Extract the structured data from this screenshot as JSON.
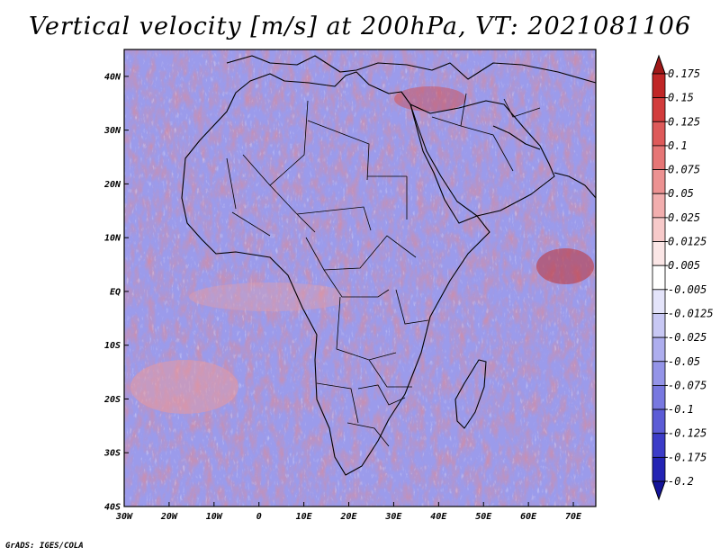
{
  "title": "Vertical velocity [m/s] at 200hPa, VT: 2021081106",
  "credit": "GrADS: IGES/COLA",
  "chart_data": {
    "type": "heatmap",
    "variable": "Vertical velocity",
    "units": "m/s",
    "level": "200hPa",
    "valid_time": "2021081106",
    "x_range": [
      -30,
      75
    ],
    "y_range": [
      -40,
      45
    ],
    "lon_ticks": [
      {
        "value": -30,
        "label": "30W"
      },
      {
        "value": -20,
        "label": "20W"
      },
      {
        "value": -10,
        "label": "10W"
      },
      {
        "value": 0,
        "label": "0"
      },
      {
        "value": 10,
        "label": "10E"
      },
      {
        "value": 20,
        "label": "20E"
      },
      {
        "value": 30,
        "label": "30E"
      },
      {
        "value": 40,
        "label": "40E"
      },
      {
        "value": 50,
        "label": "50E"
      },
      {
        "value": 60,
        "label": "60E"
      },
      {
        "value": 70,
        "label": "70E"
      }
    ],
    "lat_ticks": [
      {
        "value": 40,
        "label": "40N"
      },
      {
        "value": 30,
        "label": "30N"
      },
      {
        "value": 20,
        "label": "20N"
      },
      {
        "value": 10,
        "label": "10N"
      },
      {
        "value": 0,
        "label": "EQ"
      },
      {
        "value": -10,
        "label": "10S"
      },
      {
        "value": -20,
        "label": "20S"
      },
      {
        "value": -30,
        "label": "30S"
      },
      {
        "value": -40,
        "label": "40S"
      }
    ],
    "colorbar": {
      "labels": [
        "0.175",
        "0.15",
        "0.125",
        "0.1",
        "0.075",
        "0.05",
        "0.025",
        "0.0125",
        "0.005",
        "-0.005",
        "-0.0125",
        "-0.025",
        "-0.05",
        "-0.075",
        "-0.1",
        "-0.125",
        "-0.175",
        "-0.2"
      ],
      "colors": [
        "#a01818",
        "#c02626",
        "#d23c3c",
        "#de5a5a",
        "#e67676",
        "#ec9292",
        "#f2aeae",
        "#f7caca",
        "#fbe6e6",
        "#ffffff",
        "#e4e4fa",
        "#c8c8f4",
        "#aeaeee",
        "#9494e8",
        "#7878e0",
        "#5c5cd6",
        "#3c3cc8",
        "#2424b4",
        "#14149a"
      ]
    }
  }
}
